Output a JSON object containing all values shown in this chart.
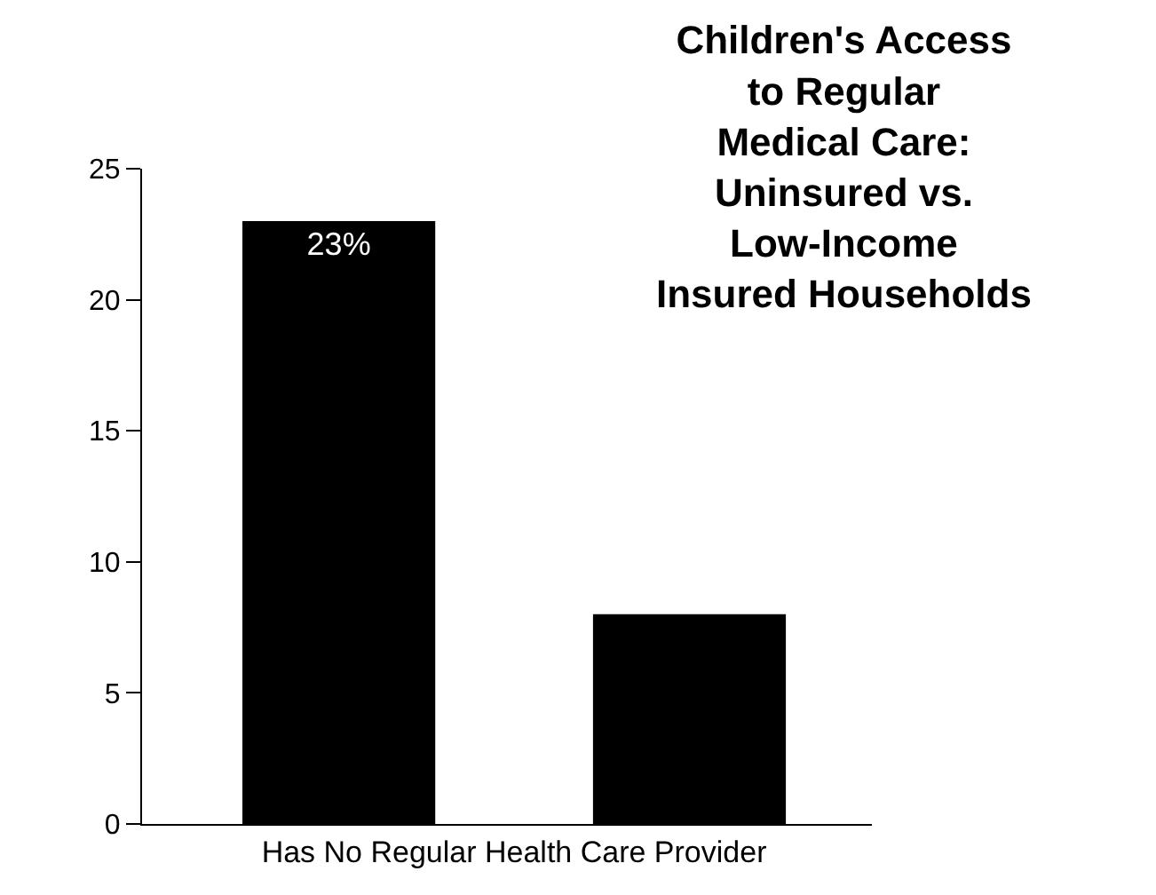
{
  "chart_data": {
    "type": "bar",
    "title": "Children's Access\nto Regular\nMedical Care:\nUninsured vs.\nLow-Income\nInsured Households",
    "categories": [
      "Has No Regular Health Care Provider"
    ],
    "series": [
      {
        "color": "#000000",
        "values": [
          23
        ],
        "value_labels": [
          "23%"
        ]
      },
      {
        "color": "#000000",
        "values": [
          8
        ],
        "value_labels": [
          null
        ]
      }
    ],
    "ylim": [
      0,
      25
    ],
    "yticks": [
      0,
      5,
      10,
      15,
      20,
      25
    ],
    "grid": false
  }
}
